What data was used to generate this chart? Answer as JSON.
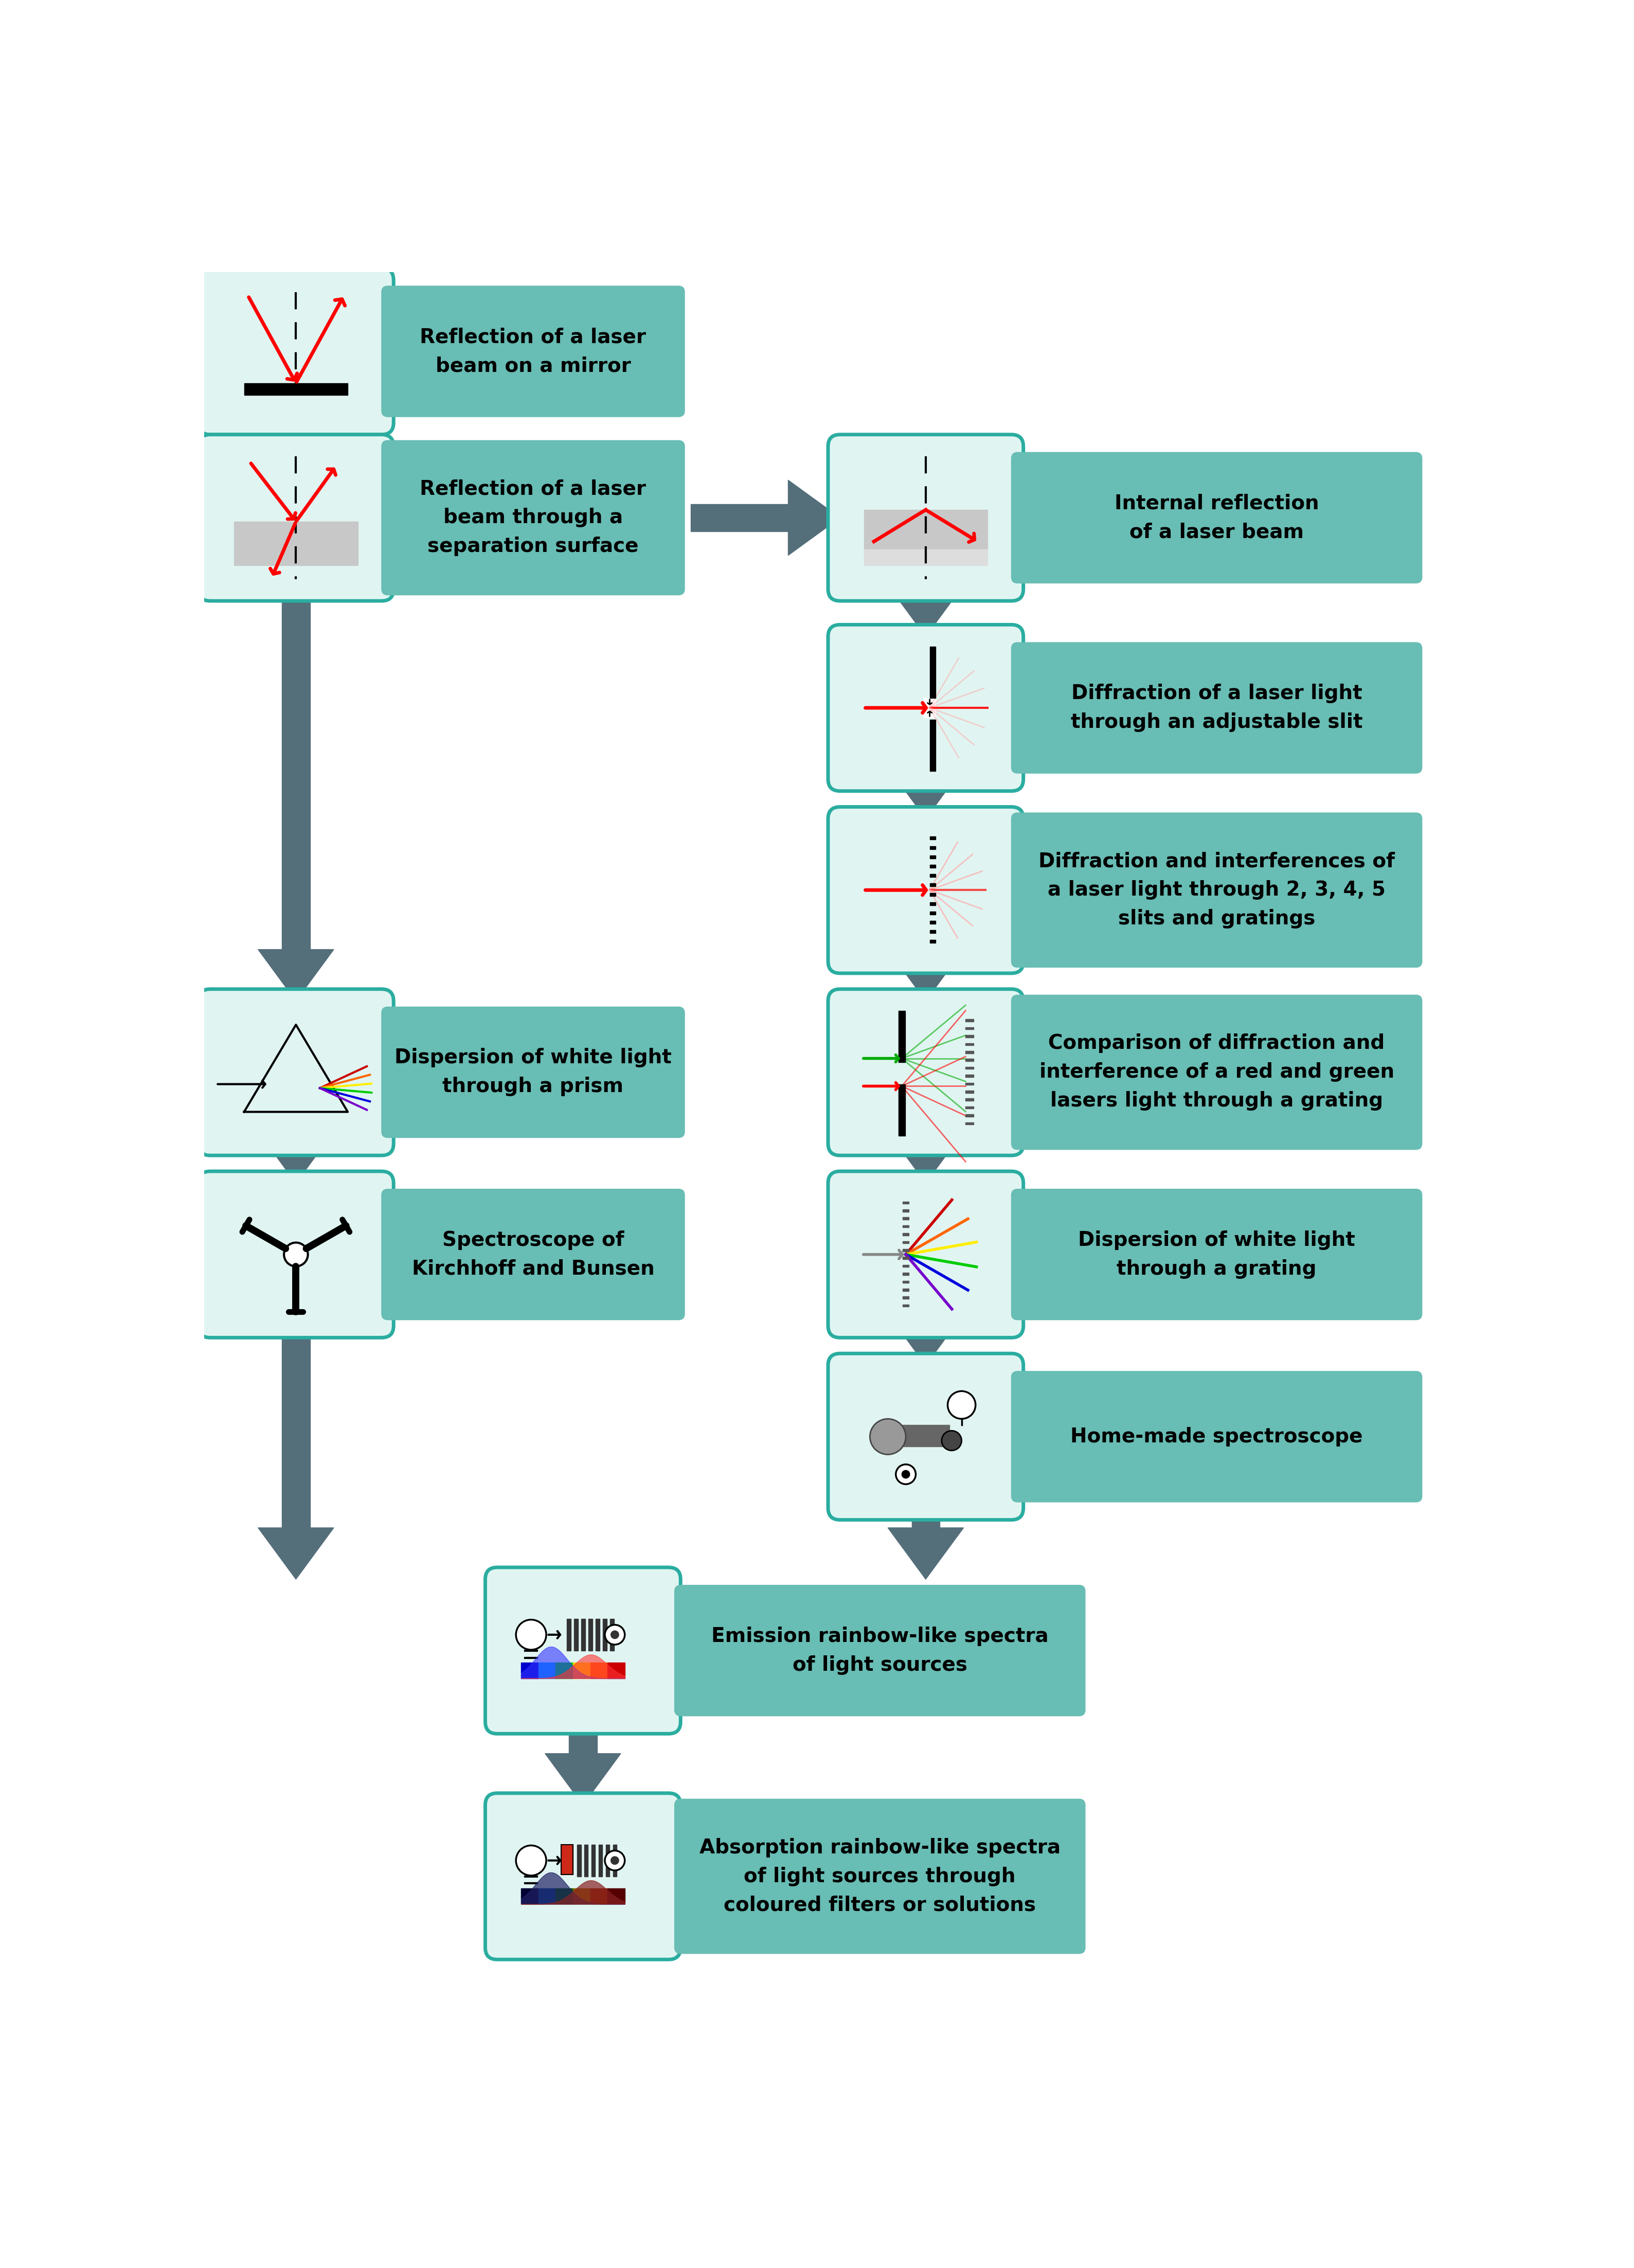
{
  "bg_color": "#ffffff",
  "icon_bg": "#e0f5f2",
  "icon_border": "#2aada0",
  "text_bg": "#68bdb4",
  "arrow_color": "#546e7a",
  "text_color": "#000000",
  "font_size": 28,
  "nodes": {
    "mirror": {
      "label": "Reflection of a laser\nbeam on a mirror"
    },
    "separation": {
      "label": "Reflection of a laser\nbeam through a\nseparation surface"
    },
    "internal": {
      "label": "Internal reflection\nof a laser beam"
    },
    "slit": {
      "label": "Diffraction of a laser light\nthrough an adjustable slit"
    },
    "slits": {
      "label": "Diffraction and interferences of\na laser light through 2, 3, 4, 5\nslits and gratings"
    },
    "comparison": {
      "label": "Comparison of diffraction and\ninterference of a red and green\nlasers light through a grating"
    },
    "grating": {
      "label": "Dispersion of white light\nthrough a grating"
    },
    "prism": {
      "label": "Dispersion of white light\nthrough a prism"
    },
    "kirchhoff": {
      "label": "Spectroscope of\nKirchhoff and Bunsen"
    },
    "homemade": {
      "label": "Home-made spectroscope"
    },
    "emission": {
      "label": "Emission rainbow-like spectra\nof light sources"
    },
    "absorption": {
      "label": "Absorption rainbow-like spectra\nof light sources through\ncoloured filters or solutions"
    }
  }
}
